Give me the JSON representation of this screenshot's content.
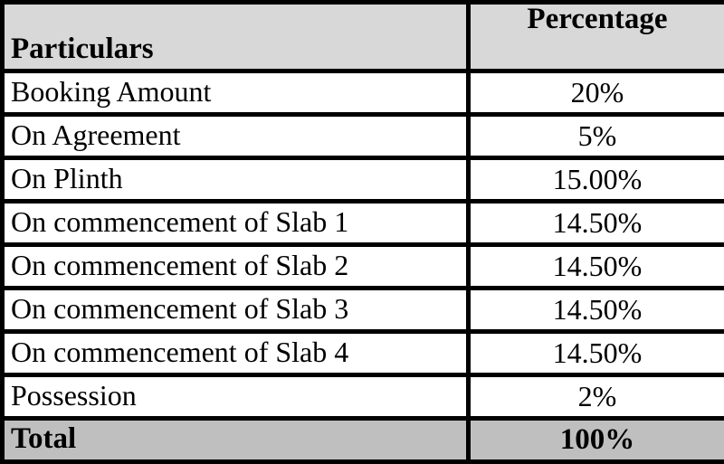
{
  "table": {
    "header": {
      "particulars": "Particulars",
      "percentage": "Percentage"
    },
    "rows": [
      {
        "particulars": "Booking Amount",
        "percentage": "20%"
      },
      {
        "particulars": "On Agreement",
        "percentage": "5%"
      },
      {
        "particulars": "On Plinth",
        "percentage": "15.00%"
      },
      {
        "particulars": "On commencement of Slab 1",
        "percentage": "14.50%"
      },
      {
        "particulars": "On commencement of Slab 2",
        "percentage": "14.50%"
      },
      {
        "particulars": "On commencement of Slab 3",
        "percentage": "14.50%"
      },
      {
        "particulars": "On commencement of Slab 4",
        "percentage": "14.50%"
      },
      {
        "particulars": "Possession",
        "percentage": "2%"
      }
    ],
    "total": {
      "label": "Total",
      "percentage": "100%"
    }
  },
  "colors": {
    "header_bg": "#d8d8d8",
    "total_bg": "#bfbfbf",
    "row_bg": "#ffffff",
    "border": "#000000",
    "text": "#000000"
  }
}
